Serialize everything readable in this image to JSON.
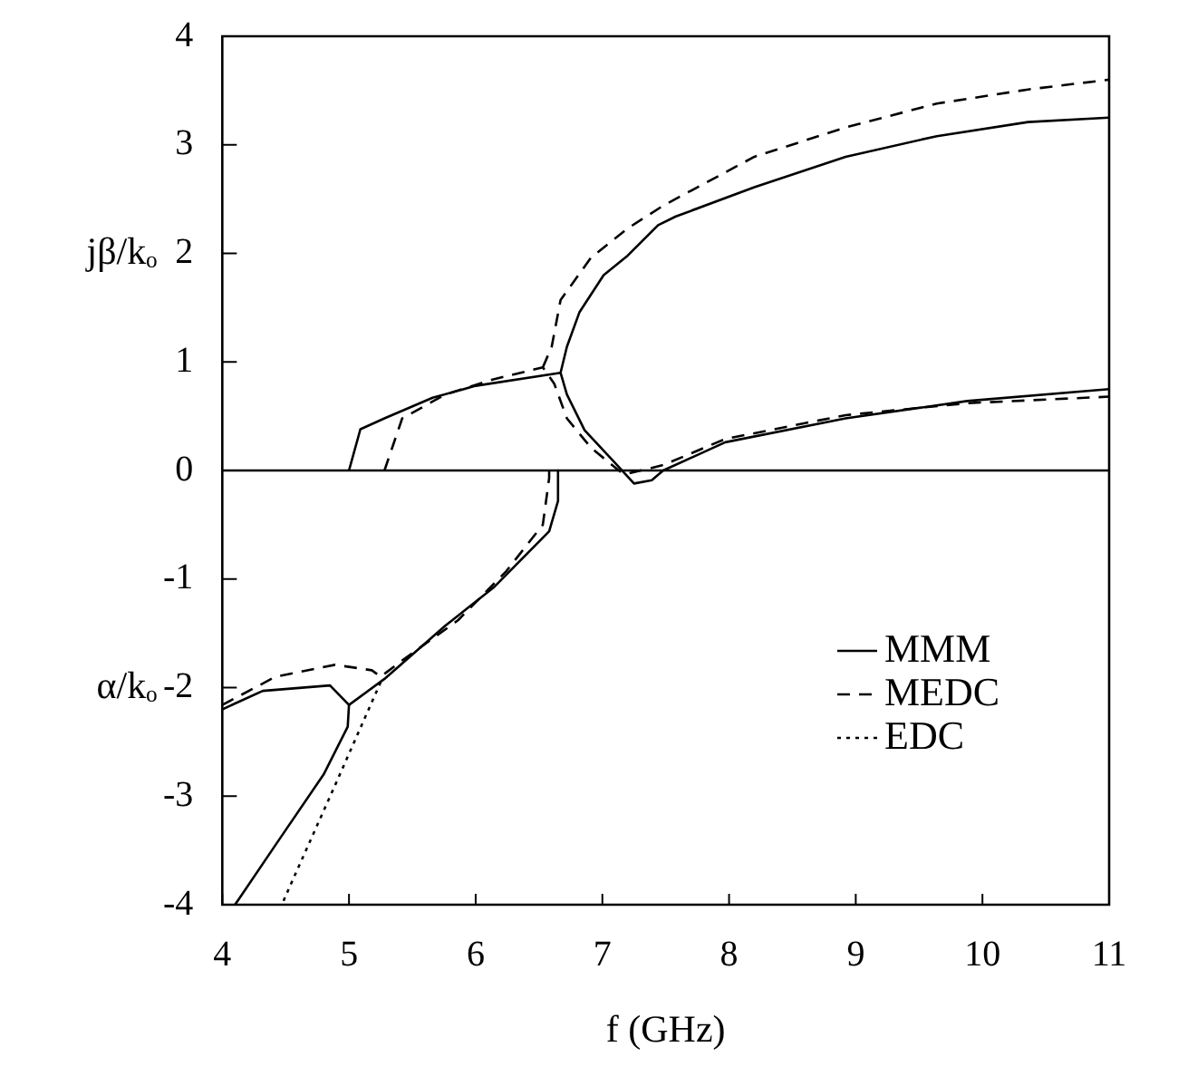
{
  "chart_data": {
    "type": "line",
    "xlabel": "f (GHz)",
    "ylabel": "jβ/kₒ",
    "annotations": [
      "α/kₒ"
    ],
    "xlim": [
      4,
      11
    ],
    "ylim": [
      -4,
      4
    ],
    "xticks": [
      4,
      5,
      6,
      7,
      8,
      9,
      10,
      11
    ],
    "yticks": [
      -4,
      -3,
      -2,
      -1,
      0,
      1,
      2,
      3,
      4
    ],
    "grid": false,
    "legend": "bottom right",
    "marker": "none",
    "ref_lines": [
      {
        "axis": "y",
        "value": 0,
        "color": "#000000"
      }
    ],
    "series": [
      {
        "name": "MMM",
        "color": "#000000",
        "line_style": "solid",
        "x": [
          5.0,
          5.09,
          5.28,
          5.66,
          6.0,
          6.67,
          6.72,
          6.86,
          7.1,
          7.25,
          7.39,
          7.48,
          7.97,
          8.92,
          9.88,
          11
        ],
        "values": [
          0,
          0.38,
          0.48,
          0.67,
          0.78,
          0.9,
          0.7,
          0.37,
          0.07,
          -0.12,
          -0.09,
          0,
          0.26,
          0.48,
          0.64,
          0.75
        ]
      },
      {
        "color": "#000000",
        "line_style": "solid",
        "x": [
          6.67,
          6.72,
          6.82,
          7.01,
          7.2,
          7.44,
          7.58,
          8.2,
          8.92,
          9.64,
          10.36,
          11
        ],
        "values": [
          0.9,
          1.14,
          1.46,
          1.8,
          1.98,
          2.26,
          2.34,
          2.61,
          2.89,
          3.08,
          3.21,
          3.25
        ]
      },
      {
        "color": "#000000",
        "line_style": "solid",
        "x": [
          6.65,
          6.65,
          6.58,
          6.14,
          5.76,
          5.28,
          5.0,
          4.85,
          4.32,
          4.0
        ],
        "values": [
          0,
          -0.28,
          -0.56,
          -1.08,
          -1.43,
          -1.92,
          -2.16,
          -1.98,
          -2.03,
          -2.2
        ]
      },
      {
        "color": "#000000",
        "line_style": "solid",
        "x": [
          5.0,
          4.99,
          4.8,
          4.42,
          4.13,
          4.1
        ],
        "values": [
          -2.16,
          -2.36,
          -2.8,
          -3.45,
          -3.95,
          -4
        ]
      },
      {
        "name": "MEDC",
        "color": "#000000",
        "line_style": "dashed",
        "x": [
          5.28,
          5.42,
          5.76,
          6.14,
          6.53,
          6.62,
          6.72,
          6.91,
          7.15,
          7.2,
          7.48,
          7.97,
          8.92,
          9.88,
          11
        ],
        "values": [
          0,
          0.48,
          0.7,
          0.84,
          0.95,
          0.8,
          0.48,
          0.21,
          -0.02,
          -0.03,
          0.05,
          0.29,
          0.51,
          0.62,
          0.68
        ]
      },
      {
        "color": "#000000",
        "line_style": "dashed",
        "x": [
          6.53,
          6.6,
          6.67,
          6.91,
          7.2,
          7.48,
          8.2,
          8.92,
          9.64,
          10.36,
          11
        ],
        "values": [
          0.95,
          1.14,
          1.57,
          1.96,
          2.23,
          2.44,
          2.89,
          3.16,
          3.38,
          3.51,
          3.6
        ]
      },
      {
        "color": "#000000",
        "line_style": "dashed",
        "x": [
          6.58,
          6.58,
          6.53,
          6.24,
          5.86,
          5.42,
          5.25,
          5.18,
          4.89,
          4.42,
          4.0
        ],
        "values": [
          0,
          -0.07,
          -0.5,
          -0.93,
          -1.38,
          -1.75,
          -1.9,
          -1.84,
          -1.79,
          -1.9,
          -2.16
        ]
      },
      {
        "name": "EDC",
        "color": "#000000",
        "line_style": "dotted",
        "x": [
          5.25,
          4.89,
          4.53,
          4.47
        ],
        "values": [
          -1.95,
          -2.9,
          -3.84,
          -4
        ]
      }
    ]
  }
}
